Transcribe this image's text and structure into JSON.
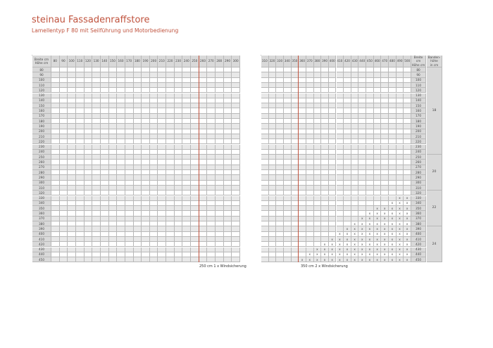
{
  "header": {
    "title": "steinau Fassadenraffstore",
    "subtitle": "Lamellentyp F 80 mit Seilführung und Motorbedienung"
  },
  "colors": {
    "accent": "#c0533e",
    "header_bg": "#d9d9d9",
    "stripe": "#e8e8e8"
  },
  "corner_label": "Breite cm\nHöhe cm",
  "bandenhoehe_label": "Banden-\nhöhe\nin cm",
  "heights": [
    80,
    90,
    100,
    110,
    120,
    130,
    140,
    150,
    160,
    170,
    180,
    190,
    200,
    210,
    220,
    230,
    240,
    250,
    260,
    270,
    280,
    290,
    300,
    310,
    320,
    330,
    340,
    350,
    360,
    370,
    380,
    390,
    400,
    410,
    420,
    430,
    440,
    450
  ],
  "left_table": {
    "widths": [
      80,
      90,
      100,
      110,
      120,
      130,
      140,
      150,
      160,
      170,
      180,
      190,
      200,
      210,
      220,
      230,
      240,
      250,
      260,
      270,
      280,
      290,
      300
    ],
    "caption": "250 cm 1 x Windsicherung"
  },
  "right_table": {
    "widths": [
      310,
      320,
      330,
      340,
      350,
      360,
      370,
      380,
      390,
      400,
      410,
      420,
      430,
      440,
      450,
      460,
      470,
      480,
      490,
      500
    ],
    "caption": "350 cm 2 x Windsicherung",
    "mark": "x",
    "marks_from_width": {
      "330": 490,
      "340": 480,
      "350": 460,
      "360": 450,
      "370": 440,
      "380": 430,
      "390": 420,
      "400": 410,
      "410": 400,
      "420": 390,
      "430": 380,
      "440": 370,
      "450": 360
    },
    "bandenhoehe": [
      {
        "value": "18",
        "from": 80,
        "to": 240
      },
      {
        "value": "20",
        "from": 250,
        "to": 310
      },
      {
        "value": "22",
        "from": 320,
        "to": 380
      },
      {
        "value": "24",
        "from": 390,
        "to": 450
      }
    ]
  }
}
